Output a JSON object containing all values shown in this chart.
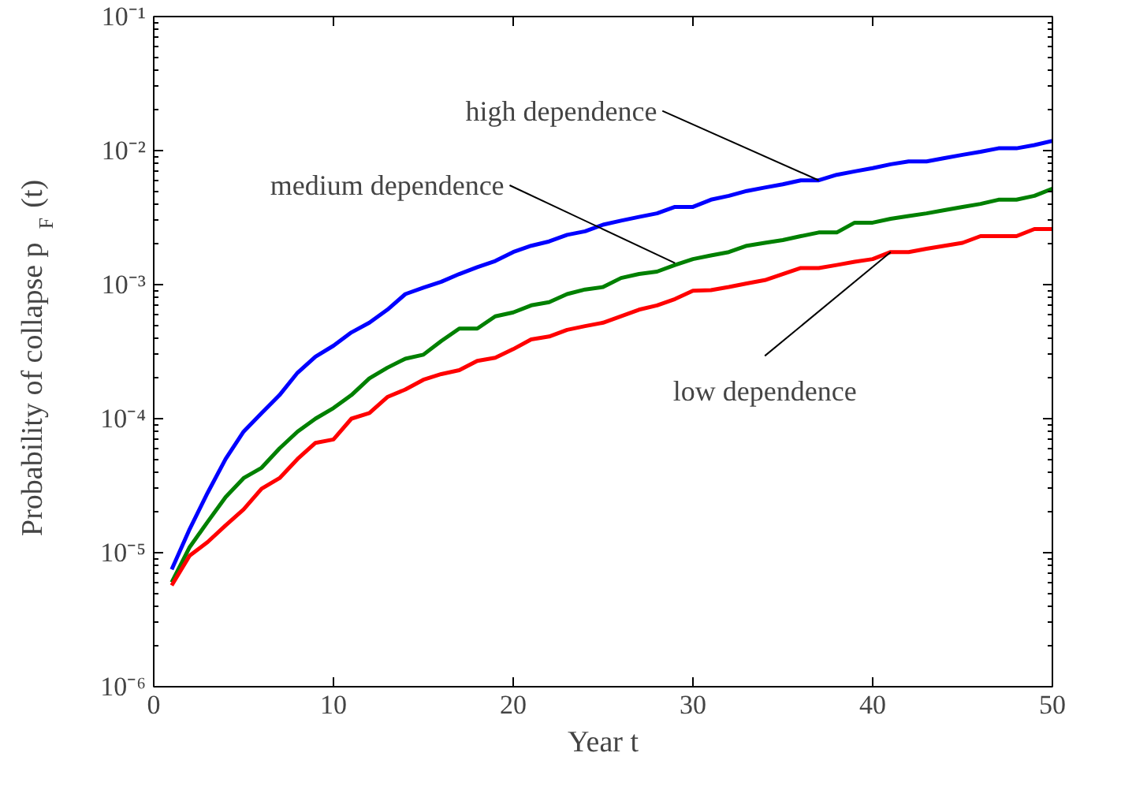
{
  "chart_data": {
    "type": "line",
    "xlabel": "Year t",
    "ylabel": "Probability of collapse p$_{F}$ (t)",
    "x": [
      1,
      2,
      3,
      4,
      5,
      6,
      7,
      8,
      9,
      10,
      11,
      12,
      13,
      14,
      15,
      16,
      17,
      18,
      19,
      20,
      21,
      22,
      23,
      24,
      25,
      26,
      27,
      28,
      29,
      30,
      31,
      32,
      33,
      34,
      35,
      36,
      37,
      38,
      39,
      40,
      41,
      42,
      43,
      44,
      45,
      46,
      47,
      48,
      49,
      50
    ],
    "series": [
      {
        "color": "#0000ff",
        "values": [
          7.5e-06,
          1.5e-05,
          2.8e-05,
          5e-05,
          8e-05,
          0.00011,
          0.00015,
          0.00022,
          0.00029,
          0.00035,
          0.00044,
          0.00052,
          0.00065,
          0.00085,
          0.00095,
          0.00105,
          0.0012,
          0.00135,
          0.0015,
          0.00175,
          0.00195,
          0.0021,
          0.00235,
          0.0025,
          0.0028,
          0.003,
          0.0032,
          0.0034,
          0.0038,
          0.0038,
          0.0043,
          0.0046,
          0.005,
          0.0053,
          0.0056,
          0.006,
          0.006,
          0.0066,
          0.007,
          0.0074,
          0.0079,
          0.0083,
          0.0083,
          0.0088,
          0.0093,
          0.0098,
          0.0104,
          0.0104,
          0.011,
          0.0118
        ]
      },
      {
        "color": "#008000",
        "values": [
          6e-06,
          1.1e-05,
          1.7e-05,
          2.6e-05,
          3.6e-05,
          4.3e-05,
          6e-05,
          8e-05,
          0.0001,
          0.00012,
          0.00015,
          0.0002,
          0.00024,
          0.00028,
          0.0003,
          0.00038,
          0.00047,
          0.00047,
          0.00058,
          0.00062,
          0.0007,
          0.00074,
          0.00085,
          0.00092,
          0.00096,
          0.00112,
          0.0012,
          0.00125,
          0.0014,
          0.00155,
          0.00165,
          0.00175,
          0.00195,
          0.00205,
          0.00215,
          0.0023,
          0.00245,
          0.00245,
          0.0029,
          0.0029,
          0.0031,
          0.00325,
          0.0034,
          0.0036,
          0.0038,
          0.004,
          0.0043,
          0.0043,
          0.0046,
          0.0052
        ]
      },
      {
        "color": "#ff0000",
        "values": [
          5.7e-06,
          9.5e-06,
          1.2e-05,
          1.6e-05,
          2.1e-05,
          3e-05,
          3.6e-05,
          5e-05,
          6.6e-05,
          7e-05,
          0.0001,
          0.00011,
          0.000145,
          0.000165,
          0.000195,
          0.000215,
          0.00023,
          0.00027,
          0.000285,
          0.00033,
          0.00039,
          0.00041,
          0.00046,
          0.00049,
          0.00052,
          0.00058,
          0.00065,
          0.0007,
          0.00078,
          0.0009,
          0.00091,
          0.00096,
          0.00102,
          0.00108,
          0.0012,
          0.00133,
          0.00133,
          0.0014,
          0.00148,
          0.00155,
          0.00175,
          0.00175,
          0.00185,
          0.00195,
          0.00205,
          0.0023,
          0.0023,
          0.0023,
          0.0026,
          0.0026
        ]
      }
    ],
    "annotations": [
      {
        "text": "high dependence",
        "x": 37,
        "y": 0.006
      },
      {
        "text": "medium dependence",
        "x": 29,
        "y": 0.00145
      },
      {
        "text": "low dependence",
        "x": 41,
        "y": 0.00175
      }
    ],
    "log": "y",
    "xlim": [
      0,
      50
    ],
    "ylim": [
      1e-06,
      0.1
    ],
    "xticks": [
      0,
      10,
      20,
      30,
      40,
      50
    ],
    "yticks": [
      {
        "value": 1e-06,
        "label": "10⁻⁶"
      },
      {
        "value": 1e-05,
        "label": "10⁻⁵"
      },
      {
        "value": 0.0001,
        "label": "10⁻⁴"
      },
      {
        "value": 0.001,
        "label": "10⁻³"
      },
      {
        "value": 0.01,
        "label": "10⁻²"
      },
      {
        "value": 0.1,
        "label": "10⁻¹"
      }
    ],
    "grid": false
  }
}
